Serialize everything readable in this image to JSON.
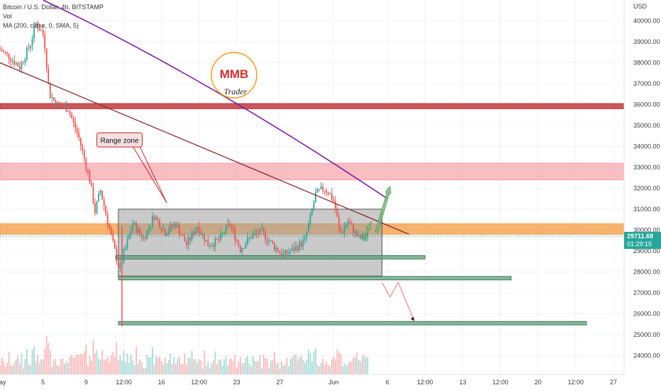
{
  "legend": {
    "symbol_line": "Bitcoin / U.S. Dollar, 4h, BITSTAMP",
    "vol_line": "Vol",
    "ma_line": "MA (200, close, 0, SMA, 5)"
  },
  "logo": {
    "text_top": "MMB",
    "text_bottom": "Trader"
  },
  "currency": "USD",
  "price_label": {
    "price": "29711.68",
    "countdown": "01:29:15",
    "value": 29711.68
  },
  "colors": {
    "up": "#26a69a",
    "down": "#ef5350",
    "ma": "#7b1fa2",
    "trendline": "#8b2a35",
    "zone_dark_red": "#c0393f",
    "zone_pink": "#f7a2a8",
    "zone_orange": "#f5a04a",
    "support_green": "#5f9e7a",
    "range_box": "#9e9e9e",
    "arrow_green": "#6fbf73",
    "arrow_red": "#e57373",
    "price_label_bg": "#26a69a"
  },
  "chart_data": {
    "type": "candlestick",
    "title": "Bitcoin / U.S. Dollar, 4h, BITSTAMP",
    "ylim": [
      23100,
      41000
    ],
    "yticks": [
      24000,
      25000,
      26000,
      27000,
      28000,
      29000,
      30000,
      31000,
      32000,
      33000,
      34000,
      35000,
      36000,
      37000,
      38000,
      39000,
      40000
    ],
    "ytick_labels": [
      "24000.00",
      "25000.00",
      "26000.00",
      "27000.00",
      "28000.00",
      "29000.00",
      "30000.00",
      "31000.00",
      "32000.00",
      "33000.00",
      "34000.00",
      "35000.00",
      "36000.00",
      "37000.00",
      "38000.00",
      "39000.00",
      "40000.00"
    ],
    "xlim": [
      "2022-05-01 00:00",
      "2022-06-28 00:00"
    ],
    "xticks": [
      {
        "t": "2022-05-01 00:00",
        "label": "May"
      },
      {
        "t": "2022-05-05 00:00",
        "label": "5"
      },
      {
        "t": "2022-05-09 00:00",
        "label": "9"
      },
      {
        "t": "2022-05-12 12:00",
        "label": "12:00"
      },
      {
        "t": "2022-05-16 00:00",
        "label": "16"
      },
      {
        "t": "2022-05-19 12:00",
        "label": "12:00"
      },
      {
        "t": "2022-05-23 00:00",
        "label": "23"
      },
      {
        "t": "2022-05-27 00:00",
        "label": "27"
      },
      {
        "t": "2022-06-01 00:00",
        "label": "Jun"
      },
      {
        "t": "2022-06-06 00:00",
        "label": "6"
      },
      {
        "t": "2022-06-09 12:00",
        "label": "12:00"
      },
      {
        "t": "2022-06-13 00:00",
        "label": "13"
      },
      {
        "t": "2022-06-16 12:00",
        "label": "12:00"
      },
      {
        "t": "2022-06-20 00:00",
        "label": "20"
      },
      {
        "t": "2022-06-23 12:00",
        "label": "12:00"
      },
      {
        "t": "2022-06-27 00:00",
        "label": "27"
      }
    ],
    "price_path": [
      [
        "2022-05-01 00:00",
        38700
      ],
      [
        "2022-05-02 00:00",
        38300
      ],
      [
        "2022-05-03 00:00",
        37800
      ],
      [
        "2022-05-04 00:00",
        38900
      ],
      [
        "2022-05-04 12:00",
        39900
      ],
      [
        "2022-05-05 06:00",
        39300
      ],
      [
        "2022-05-05 18:00",
        36500
      ],
      [
        "2022-05-06 12:00",
        36000
      ],
      [
        "2022-05-07 12:00",
        35800
      ],
      [
        "2022-05-08 12:00",
        34400
      ],
      [
        "2022-05-09 12:00",
        32400
      ],
      [
        "2022-05-10 00:00",
        30900
      ],
      [
        "2022-05-10 12:00",
        31900
      ],
      [
        "2022-05-11 12:00",
        29700
      ],
      [
        "2022-05-12 06:00",
        28100
      ],
      [
        "2022-05-12 14:00",
        28700
      ],
      [
        "2022-05-13 12:00",
        30300
      ],
      [
        "2022-05-14 12:00",
        29600
      ],
      [
        "2022-05-15 12:00",
        30700
      ],
      [
        "2022-05-16 12:00",
        29900
      ],
      [
        "2022-05-17 12:00",
        30300
      ],
      [
        "2022-05-18 12:00",
        29300
      ],
      [
        "2022-05-19 12:00",
        30200
      ],
      [
        "2022-05-20 12:00",
        29300
      ],
      [
        "2022-05-21 12:00",
        29500
      ],
      [
        "2022-05-22 12:00",
        30300
      ],
      [
        "2022-05-23 12:00",
        29100
      ],
      [
        "2022-05-24 12:00",
        29700
      ],
      [
        "2022-05-25 12:00",
        29900
      ],
      [
        "2022-05-26 12:00",
        29300
      ],
      [
        "2022-05-27 12:00",
        28800
      ],
      [
        "2022-05-28 12:00",
        29100
      ],
      [
        "2022-05-29 12:00",
        29500
      ],
      [
        "2022-05-30 12:00",
        31700
      ],
      [
        "2022-05-31 06:00",
        32000
      ],
      [
        "2022-05-31 18:00",
        31800
      ],
      [
        "2022-06-01 06:00",
        31300
      ],
      [
        "2022-06-01 18:00",
        29800
      ],
      [
        "2022-06-02 12:00",
        30400
      ],
      [
        "2022-06-03 12:00",
        29600
      ],
      [
        "2022-06-04 06:00",
        29700
      ]
    ],
    "volume_ylim": [
      0,
      3500
    ]
  },
  "annotations": {
    "range_zone_label": "Range zone",
    "resistance_zones": [
      {
        "name": "dark-red",
        "low": 35800,
        "high": 36050
      },
      {
        "name": "pink",
        "low": 32400,
        "high": 33200
      },
      {
        "name": "orange",
        "low": 29800,
        "high": 30300
      }
    ],
    "range_box": {
      "t0": "2022-05-12 00:00",
      "t1": "2022-06-05 12:00",
      "low": 27800,
      "high": 31000
    },
    "support_lines": [
      {
        "t0": "2022-05-11 18:00",
        "t1": "2022-06-09 12:00",
        "value": 28700
      },
      {
        "t0": "2022-05-12 00:00",
        "t1": "2022-06-17 12:00",
        "value": 27700
      },
      {
        "t0": "2022-05-12 00:00",
        "t1": "2022-06-24 12:00",
        "value": 25550
      }
    ],
    "trendline": [
      [
        "2022-05-01 00:00",
        38000
      ],
      [
        "2022-06-08 00:00",
        29800
      ]
    ],
    "ma200": [
      [
        "2022-05-05 00:00",
        41000
      ],
      [
        "2022-05-20 00:00",
        37000
      ],
      [
        "2022-06-06 00:00",
        31500
      ]
    ]
  }
}
